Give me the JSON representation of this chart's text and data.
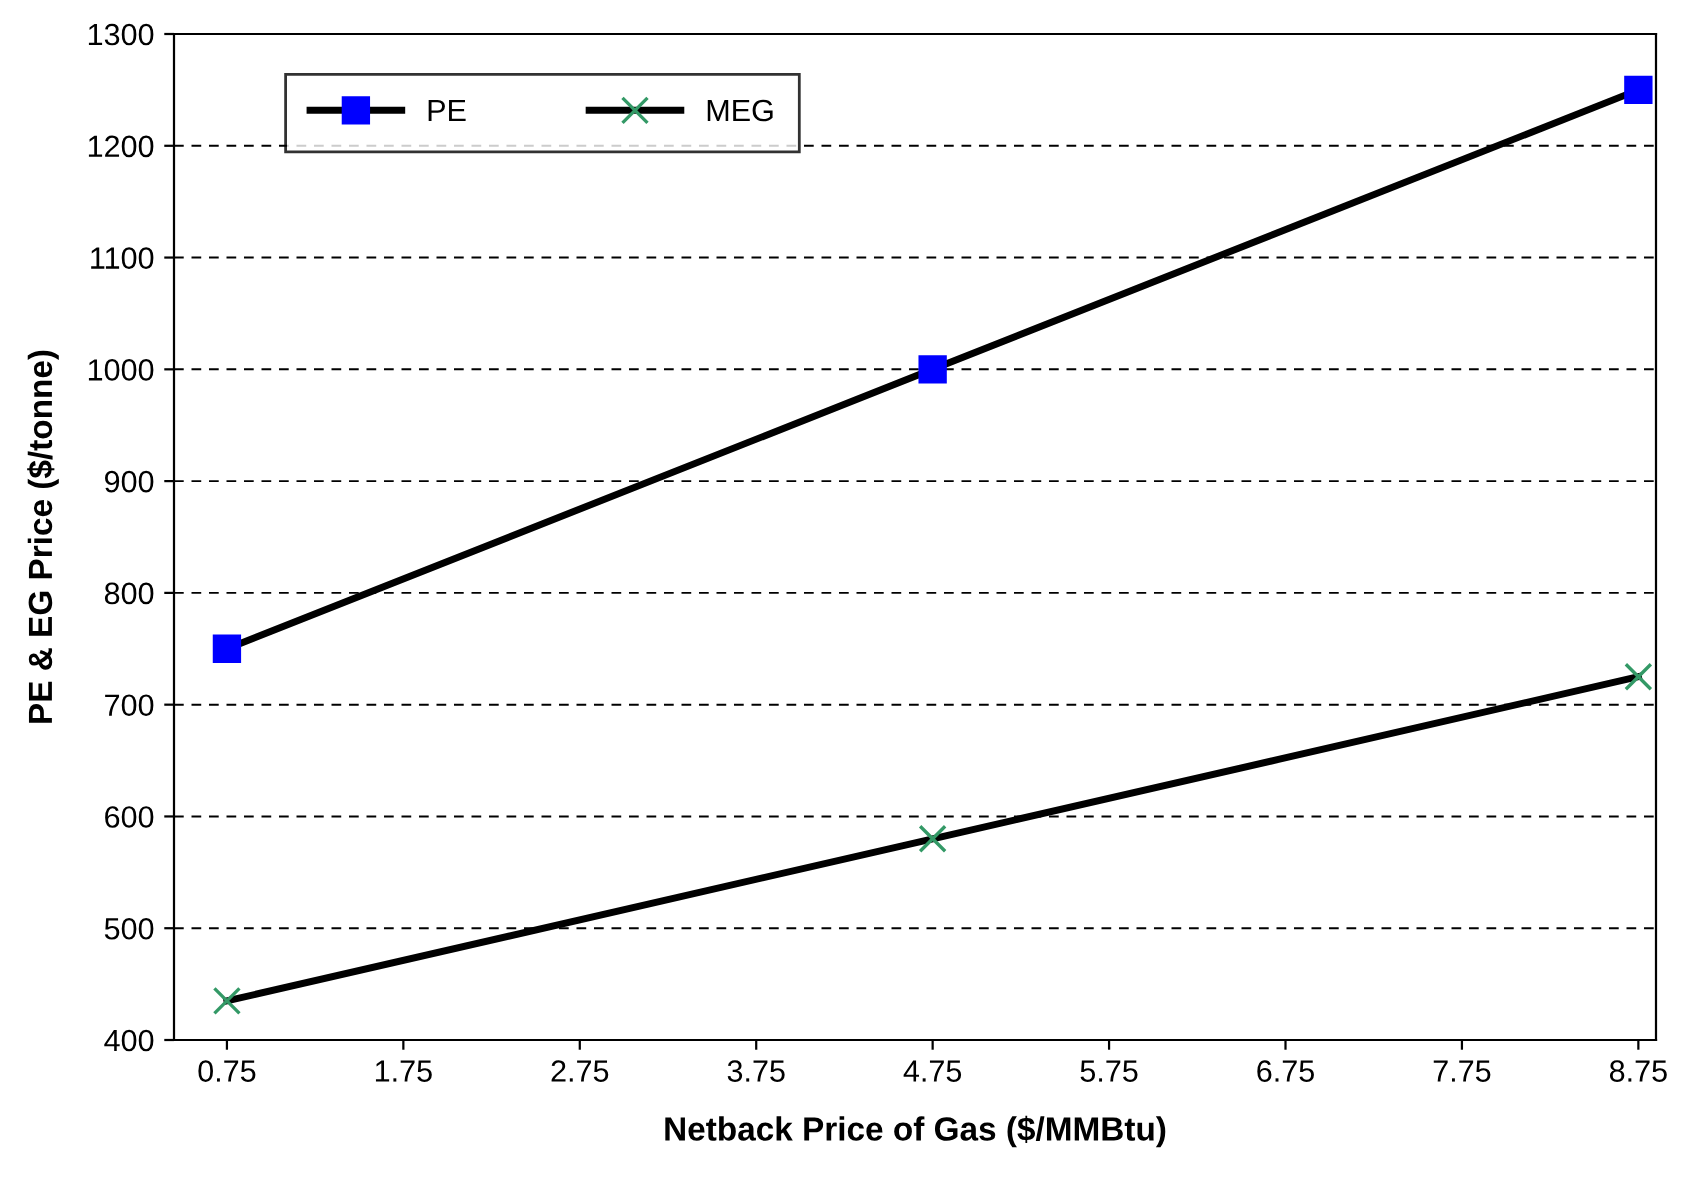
{
  "chart_data": {
    "type": "line",
    "xlabel": "Netback Price of Gas ($/MMBtu)",
    "ylabel": "PE & EG Price ($/tonne)",
    "x": [
      0.75,
      4.75,
      8.75
    ],
    "series": [
      {
        "name": "PE",
        "color": "#0000ff",
        "marker": "square",
        "values": [
          750,
          1000,
          1250
        ]
      },
      {
        "name": "MEG",
        "color": "#339966",
        "marker": "cross",
        "values": [
          435,
          580,
          725
        ]
      }
    ],
    "xlim": [
      0.45,
      8.85
    ],
    "xticks": [
      0.75,
      1.75,
      2.75,
      3.75,
      4.75,
      5.75,
      6.75,
      7.75,
      8.75
    ],
    "ylim": [
      400,
      1300
    ],
    "yticks": [
      400,
      500,
      600,
      700,
      800,
      900,
      1000,
      1100,
      1200,
      1300
    ],
    "grid": "y",
    "legend": "top left",
    "line_style": "solid"
  }
}
